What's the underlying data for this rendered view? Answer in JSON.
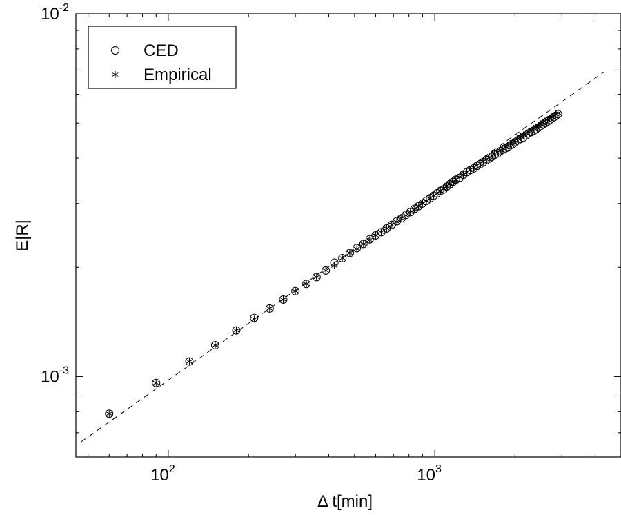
{
  "chart_data": {
    "type": "scatter",
    "xlabel": "Δ t[min]",
    "ylabel": "E|R|",
    "xscale": "log",
    "yscale": "log",
    "xlim": [
      45,
      5000
    ],
    "ylim": [
      0.0006,
      0.01
    ],
    "x_ticks": [
      {
        "base": "10",
        "exp": "2",
        "value": 100
      },
      {
        "base": "10",
        "exp": "3",
        "value": 1000
      }
    ],
    "y_ticks": [
      {
        "base": "10",
        "exp": "-3",
        "value": 0.001
      },
      {
        "base": "10",
        "exp": "-2",
        "value": 0.01
      }
    ],
    "grid": false,
    "legend_position": "top-left",
    "series": [
      {
        "name": "CED",
        "marker": "circle",
        "x": [
          60,
          90,
          120,
          150,
          180,
          210,
          240,
          270,
          300,
          330,
          360,
          390,
          420,
          450,
          480,
          510,
          540,
          570,
          600,
          630,
          660,
          690,
          720,
          750,
          780,
          810,
          840,
          870,
          900,
          930,
          960,
          990,
          1020,
          1050,
          1080,
          1110,
          1140,
          1170,
          1200,
          1240,
          1280,
          1320,
          1360,
          1400,
          1440,
          1480,
          1520,
          1560,
          1600,
          1640,
          1680,
          1720,
          1760,
          1800,
          1840,
          1880,
          1920,
          1960,
          2000,
          2050,
          2100,
          2150,
          2200,
          2250,
          2300,
          2350,
          2400,
          2450,
          2500,
          2550,
          2600,
          2650,
          2700,
          2750,
          2800,
          2850,
          2900
        ],
        "y": [
          0.00079,
          0.00096,
          0.0011,
          0.00122,
          0.00134,
          0.00145,
          0.00154,
          0.00163,
          0.00172,
          0.0018,
          0.00188,
          0.00196,
          0.00206,
          0.00212,
          0.00219,
          0.00226,
          0.00232,
          0.00239,
          0.00245,
          0.0025,
          0.00256,
          0.00262,
          0.00268,
          0.00273,
          0.00279,
          0.00284,
          0.0029,
          0.00295,
          0.003,
          0.00305,
          0.0031,
          0.00315,
          0.0032,
          0.00325,
          0.00328,
          0.00334,
          0.00339,
          0.00344,
          0.00349,
          0.00353,
          0.0036,
          0.00366,
          0.00371,
          0.00375,
          0.00381,
          0.00385,
          0.0039,
          0.00395,
          0.00399,
          0.00404,
          0.00409,
          0.00412,
          0.00418,
          0.00422,
          0.00426,
          0.00428,
          0.00434,
          0.00437,
          0.00442,
          0.00448,
          0.00452,
          0.00456,
          0.00462,
          0.00468,
          0.00472,
          0.00476,
          0.00481,
          0.00486,
          0.00491,
          0.00496,
          0.005,
          0.00505,
          0.0051,
          0.00515,
          0.00519,
          0.00524,
          0.00529
        ]
      },
      {
        "name": "Empirical",
        "marker": "star",
        "x": [
          60,
          90,
          120,
          150,
          180,
          210,
          240,
          270,
          300,
          330,
          360,
          390,
          420,
          450,
          480,
          510,
          540,
          570,
          600,
          630,
          660,
          690,
          720,
          750,
          780,
          810,
          840,
          870,
          900,
          930,
          960,
          990,
          1020,
          1050,
          1080,
          1110,
          1140,
          1170,
          1200,
          1240,
          1280,
          1320,
          1360,
          1400,
          1440,
          1480,
          1520,
          1560,
          1600,
          1640,
          1680,
          1720,
          1760,
          1800,
          1840,
          1880,
          1920,
          1960,
          2000,
          2050,
          2100,
          2150,
          2200,
          2250,
          2300,
          2350,
          2400,
          2450,
          2500,
          2550,
          2600,
          2650,
          2700,
          2750,
          2800,
          2850,
          2900
        ],
        "y": [
          0.00079,
          0.00096,
          0.0011,
          0.00122,
          0.00134,
          0.00144,
          0.00154,
          0.00163,
          0.00172,
          0.0018,
          0.00188,
          0.00196,
          0.00202,
          0.00212,
          0.00219,
          0.00225,
          0.00232,
          0.00238,
          0.00245,
          0.0025,
          0.00256,
          0.00262,
          0.00267,
          0.00273,
          0.00278,
          0.00284,
          0.00289,
          0.00295,
          0.003,
          0.00305,
          0.0031,
          0.00315,
          0.0032,
          0.00325,
          0.0033,
          0.00335,
          0.0034,
          0.00344,
          0.00349,
          0.00355,
          0.0036,
          0.00366,
          0.00372,
          0.00377,
          0.00382,
          0.00387,
          0.00392,
          0.00397,
          0.00402,
          0.00406,
          0.00411,
          0.00416,
          0.0042,
          0.00425,
          0.00429,
          0.00434,
          0.00438,
          0.00443,
          0.00447,
          0.00452,
          0.00458,
          0.00463,
          0.00468,
          0.00473,
          0.00478,
          0.00483,
          0.00487,
          0.00492,
          0.00497,
          0.00502,
          0.00506,
          0.00511,
          0.00515,
          0.0052,
          0.00524,
          0.00529,
          0.00533
        ]
      }
    ],
    "fit_line": {
      "style": "dashed",
      "x": [
        47,
        4300
      ],
      "y": [
        0.00066,
        0.0069
      ]
    }
  }
}
